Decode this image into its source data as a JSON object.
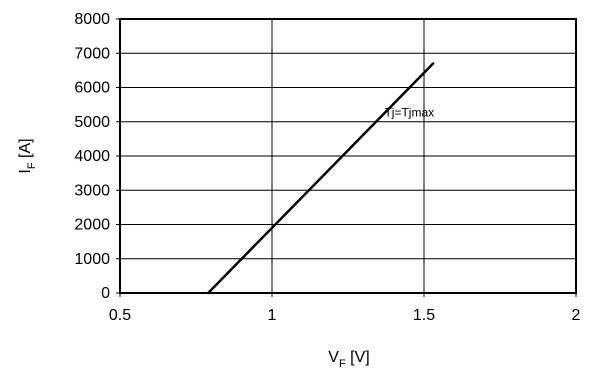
{
  "chart_data": {
    "type": "line",
    "title": "",
    "xlabel": {
      "base": "V",
      "sub": "F",
      "unit": " [V]"
    },
    "ylabel": {
      "base": "I",
      "sub": "F",
      "unit": " [A]"
    },
    "xlim": [
      0.5,
      2
    ],
    "ylim": [
      0,
      8000
    ],
    "xticks": [
      0.5,
      1,
      1.5,
      2
    ],
    "xtick_labels": [
      "0.5",
      "1",
      "1.5",
      "2"
    ],
    "yticks": [
      0,
      1000,
      2000,
      3000,
      4000,
      5000,
      6000,
      7000,
      8000
    ],
    "ytick_labels": [
      "0",
      "1000",
      "2000",
      "3000",
      "4000",
      "5000",
      "6000",
      "7000",
      "8000"
    ],
    "grid": true,
    "series": [
      {
        "name": "Tj=Tjmax",
        "x": [
          0.79,
          1.53
        ],
        "y": [
          0,
          6700
        ]
      }
    ],
    "annotations": [
      {
        "text": "Tj=Tjmax",
        "x": 1.37,
        "y": 5150
      }
    ],
    "colors": {
      "line": "#000000",
      "grid": "#000000",
      "frame": "#000000",
      "background": "#ffffff"
    }
  }
}
